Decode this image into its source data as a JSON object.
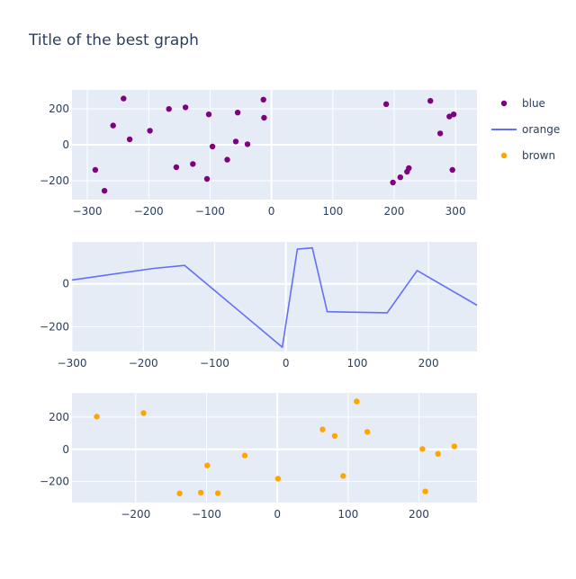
{
  "title": "Title of the best graph",
  "colors": {
    "plot_bg": "#e5ecf6",
    "grid": "#ffffff",
    "text": "#2a3f5f",
    "blue_series": "#800080",
    "orange_series": "#636efa",
    "brown_series": "#ffa500"
  },
  "chart_data": [
    {
      "type": "scatter",
      "series": [
        {
          "name": "blue",
          "x": [
            -287,
            -272,
            -258,
            -241,
            -231,
            -198,
            -167,
            -155,
            -140,
            -128,
            -105,
            -102,
            -96,
            -72,
            -58,
            -55,
            -39,
            -13,
            -12,
            187,
            198,
            210,
            221,
            224,
            259,
            275,
            290,
            295,
            297
          ],
          "y": [
            -140,
            -256,
            107,
            257,
            30,
            78,
            199,
            -125,
            208,
            -107,
            -190,
            169,
            -10,
            -83,
            18,
            179,
            3,
            251,
            150,
            226,
            -210,
            -181,
            -150,
            -130,
            244,
            63,
            157,
            -140,
            169
          ]
        }
      ],
      "xlim": [
        -325,
        335
      ],
      "ylim": [
        -305,
        305
      ],
      "xticks": [
        -300,
        -200,
        -100,
        0,
        100,
        200,
        300
      ],
      "yticks": [
        -200,
        0,
        200
      ],
      "grid": true
    },
    {
      "type": "line",
      "series": [
        {
          "name": "orange",
          "x": [
            -300,
            -185,
            -142,
            -5,
            16,
            37,
            58,
            142,
            184,
            268
          ],
          "y": [
            18,
            72,
            86,
            -296,
            162,
            168,
            -130,
            -135,
            62,
            -100
          ]
        }
      ],
      "xlim": [
        -300,
        268
      ],
      "ylim": [
        -316,
        196
      ],
      "xticks": [
        -300,
        -200,
        -100,
        0,
        100,
        200
      ],
      "yticks": [
        -200,
        0
      ],
      "grid": true
    },
    {
      "type": "scatter",
      "series": [
        {
          "name": "brown",
          "x": [
            -255,
            -189,
            -138,
            -108,
            -99,
            -84,
            -46,
            1,
            64,
            81,
            93,
            112,
            127,
            205,
            209,
            227,
            250
          ],
          "y": [
            203,
            225,
            -273,
            -268,
            -100,
            -272,
            -38,
            -182,
            123,
            83,
            -165,
            297,
            108,
            2,
            -261,
            -28,
            19
          ]
        }
      ],
      "xlim": [
        -290,
        282
      ],
      "ylim": [
        -330,
        350
      ],
      "xticks": [
        -200,
        -100,
        0,
        100,
        200
      ],
      "yticks": [
        -200,
        0,
        200
      ],
      "grid": true
    }
  ],
  "legend": {
    "placement": "right",
    "items": [
      {
        "label": "blue",
        "symbol": "marker",
        "color": "#800080"
      },
      {
        "label": "orange",
        "symbol": "line",
        "color": "#636efa"
      },
      {
        "label": "brown",
        "symbol": "marker",
        "color": "#ffa500"
      }
    ]
  }
}
